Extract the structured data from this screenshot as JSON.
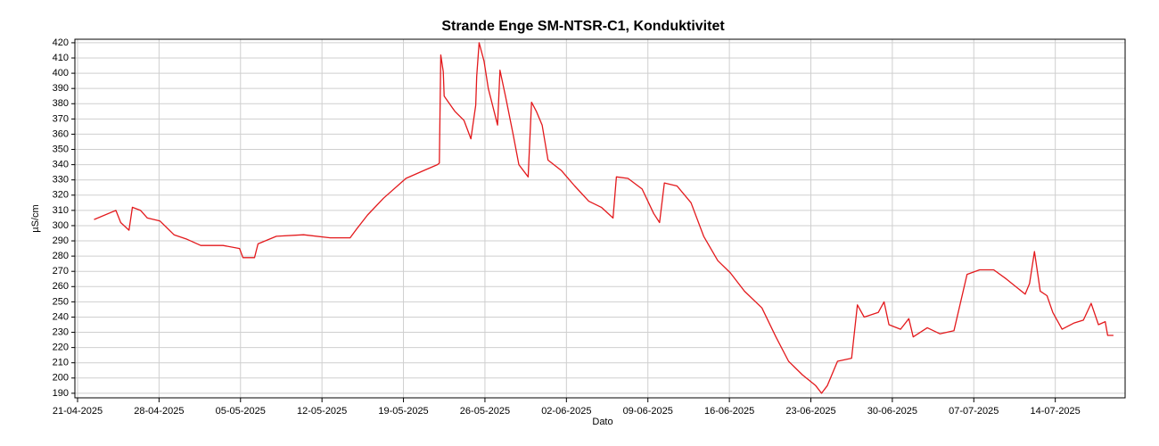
{
  "chart_data": {
    "type": "line",
    "title": "Strande Enge SM-NTSR-C1, Konduktivitet",
    "xlabel": "Dato",
    "ylabel": "µS/cm",
    "grid": true,
    "ylim": [
      187,
      422.3
    ],
    "yticks": [
      190,
      200,
      210,
      220,
      230,
      240,
      250,
      260,
      270,
      280,
      290,
      300,
      310,
      320,
      330,
      340,
      350,
      360,
      370,
      380,
      390,
      400,
      410,
      420
    ],
    "xlim": [
      "2025-04-20T18:30",
      "2025-07-20T00:00"
    ],
    "xticks": [
      {
        "value": "2025-04-21T00:00",
        "label": "21-04-2025"
      },
      {
        "value": "2025-04-28T00:00",
        "label": "28-04-2025"
      },
      {
        "value": "2025-05-05T00:00",
        "label": "05-05-2025"
      },
      {
        "value": "2025-05-12T00:00",
        "label": "12-05-2025"
      },
      {
        "value": "2025-05-19T00:00",
        "label": "19-05-2025"
      },
      {
        "value": "2025-05-26T00:00",
        "label": "26-05-2025"
      },
      {
        "value": "2025-06-02T00:00",
        "label": "02-06-2025"
      },
      {
        "value": "2025-06-09T00:00",
        "label": "09-06-2025"
      },
      {
        "value": "2025-06-16T00:00",
        "label": "16-06-2025"
      },
      {
        "value": "2025-06-23T00:00",
        "label": "23-06-2025"
      },
      {
        "value": "2025-06-30T00:00",
        "label": "30-06-2025"
      },
      {
        "value": "2025-07-07T00:00",
        "label": "07-07-2025"
      },
      {
        "value": "2025-07-14T00:00",
        "label": "14-07-2025"
      }
    ],
    "x": [
      "2025-04-22T10:00",
      "2025-04-24T07:00",
      "2025-04-24T17:00",
      "2025-04-25T10:00",
      "2025-04-25T17:00",
      "2025-04-26T10:00",
      "2025-04-27T00:00",
      "2025-04-28T02:00",
      "2025-04-29T07:00",
      "2025-04-30T10:00",
      "2025-05-01T14:00",
      "2025-05-03T12:00",
      "2025-05-04T22:00",
      "2025-05-05T05:00",
      "2025-05-06T05:00",
      "2025-05-06T12:00",
      "2025-05-08T02:00",
      "2025-05-10T10:00",
      "2025-05-12T17:00",
      "2025-05-14T10:00",
      "2025-05-15T00:00",
      "2025-05-15T22:00",
      "2025-05-17T07:00",
      "2025-05-19T05:00",
      "2025-05-20T17:00",
      "2025-05-21T22:00",
      "2025-05-22T02:00",
      "2025-05-22T05:00",
      "2025-05-22T10:00",
      "2025-05-22T12:00",
      "2025-05-23T10:00",
      "2025-05-24T05:00",
      "2025-05-24T19:00",
      "2025-05-25T05:00",
      "2025-05-25T07:00",
      "2025-05-25T12:00",
      "2025-05-25T22:00",
      "2025-05-26T07:00",
      "2025-05-27T02:00",
      "2025-05-27T07:00",
      "2025-05-27T19:00",
      "2025-05-28T10:00",
      "2025-05-28T22:00",
      "2025-05-29T17:00",
      "2025-05-30T00:00",
      "2025-05-30T10:00",
      "2025-05-30T22:00",
      "2025-05-31T10:00",
      "2025-06-01T14:00",
      "2025-06-02T17:00",
      "2025-06-03T22:00",
      "2025-06-05T00:00",
      "2025-06-06T00:00",
      "2025-06-06T07:00",
      "2025-06-07T07:00",
      "2025-06-08T12:00",
      "2025-06-09T12:00",
      "2025-06-10T00:00",
      "2025-06-10T10:00",
      "2025-06-11T12:00",
      "2025-06-12T17:00",
      "2025-06-13T19:00",
      "2025-06-15T00:00",
      "2025-06-16T02:00",
      "2025-06-17T07:00",
      "2025-06-18T19:00",
      "2025-06-20T00:00",
      "2025-06-21T02:00",
      "2025-06-22T07:00",
      "2025-06-23T10:00",
      "2025-06-23T22:00",
      "2025-06-24T10:00",
      "2025-06-25T07:00",
      "2025-06-26T12:00",
      "2025-06-27T00:00",
      "2025-06-27T14:00",
      "2025-06-28T19:00",
      "2025-06-29T07:00",
      "2025-06-29T17:00",
      "2025-06-30T17:00",
      "2025-07-01T10:00",
      "2025-07-01T19:00",
      "2025-07-03T00:00",
      "2025-07-04T02:00",
      "2025-07-05T07:00",
      "2025-07-06T10:00",
      "2025-07-07T12:00",
      "2025-07-08T17:00",
      "2025-07-09T19:00",
      "2025-07-11T10:00",
      "2025-07-11T19:00",
      "2025-07-12T05:00",
      "2025-07-12T17:00",
      "2025-07-13T07:00",
      "2025-07-13T19:00",
      "2025-07-14T14:00",
      "2025-07-15T14:00",
      "2025-07-16T10:00",
      "2025-07-17T02:00",
      "2025-07-17T17:00",
      "2025-07-18T07:00",
      "2025-07-18T12:00",
      "2025-07-19T00:00"
    ],
    "series": [
      {
        "name": "Konduktivitet",
        "color": "#e3191c",
        "values": [
          304,
          310,
          302,
          297,
          312,
          310,
          305,
          303,
          294,
          291,
          287,
          287,
          285,
          279,
          279,
          288,
          293,
          294,
          292,
          292,
          298,
          307,
          318,
          331,
          336,
          340,
          341,
          412,
          401,
          385,
          375,
          369,
          357,
          379,
          398,
          420,
          408,
          390,
          366,
          402,
          384,
          360,
          340,
          332,
          381,
          375,
          366,
          343,
          336,
          326,
          316,
          312,
          305,
          332,
          331,
          324,
          308,
          302,
          328,
          326,
          315,
          293,
          277,
          269,
          257,
          246,
          227,
          211,
          202,
          195,
          190,
          195,
          211,
          213,
          248,
          240,
          243,
          250,
          235,
          232,
          239,
          227,
          233,
          229,
          231,
          268,
          271,
          271,
          265,
          255,
          262,
          283,
          257,
          254,
          243,
          232,
          236,
          238,
          249,
          235,
          237,
          228,
          228
        ]
      }
    ]
  }
}
